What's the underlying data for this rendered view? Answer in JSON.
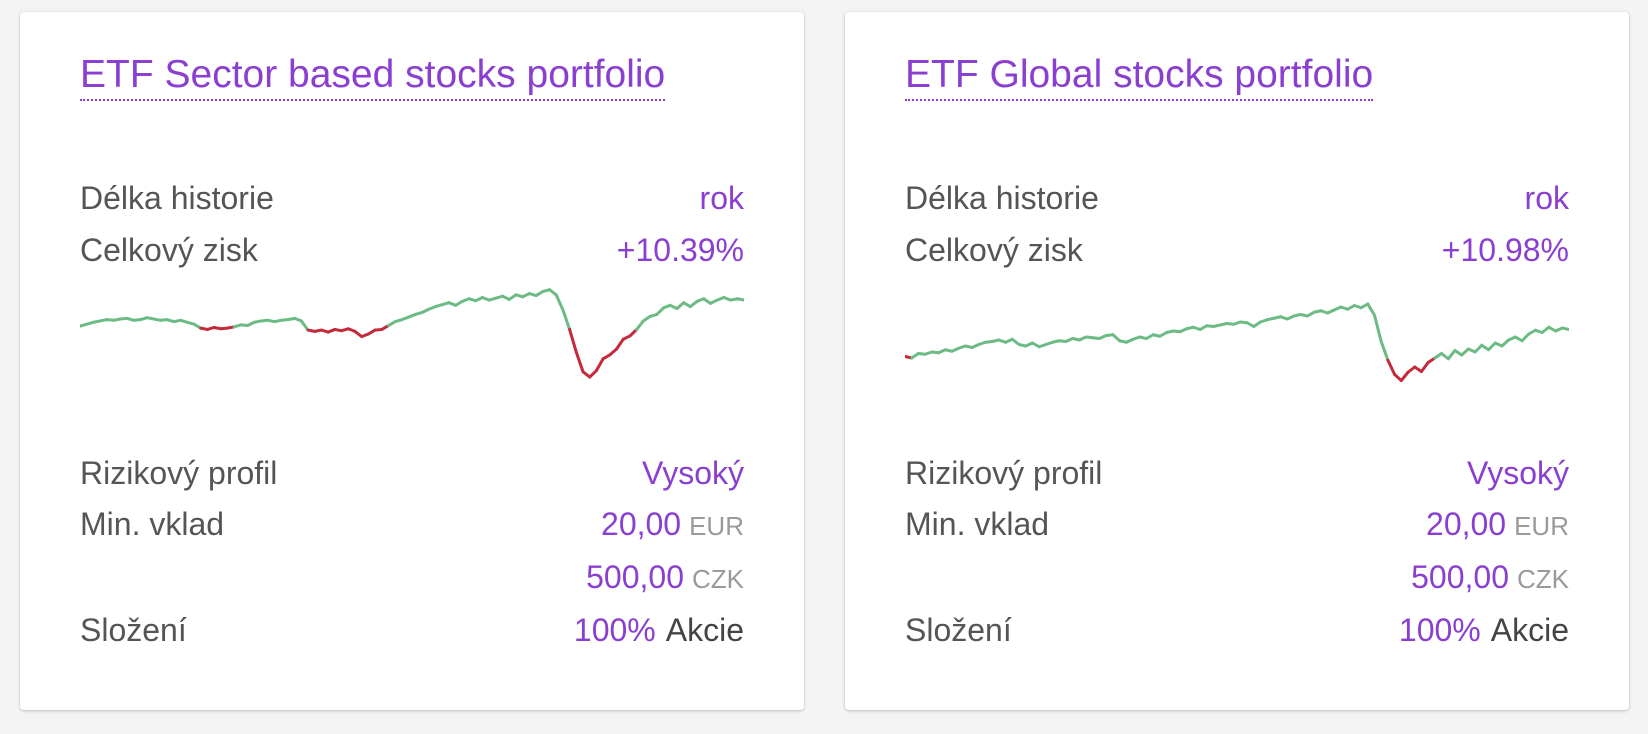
{
  "colors": {
    "accent": "#8a3fd1",
    "positive": "#6dbb84",
    "negative": "#c42a3a"
  },
  "cards": [
    {
      "title": "ETF Sector based stocks portfolio",
      "history_label": "Délka historie",
      "history_value": "rok",
      "gain_label": "Celkový zisk",
      "gain_value": "+10.39%",
      "risk_label": "Rizikový profil",
      "risk_value": "Vysoký",
      "min_label": "Min. vklad",
      "min_eur_amount": "20,00",
      "min_eur_currency": "EUR",
      "min_czk_amount": "500,00",
      "min_czk_currency": "CZK",
      "composition_label": "Složení",
      "composition_percent": "100%",
      "composition_type": "Akcie",
      "chart_data": {
        "type": "line",
        "baseline": 0,
        "ylim": [
          -15,
          8
        ],
        "values": [
          0,
          0.3,
          0.6,
          0.8,
          1.0,
          0.9,
          1.1,
          1.2,
          0.9,
          1.0,
          1.3,
          1.1,
          0.9,
          1.0,
          0.7,
          0.9,
          0.6,
          0.3,
          -0.3,
          -0.5,
          -0.2,
          -0.4,
          -0.3,
          -0.1,
          0.2,
          0.1,
          0.6,
          0.8,
          0.9,
          0.7,
          0.9,
          1.0,
          1.2,
          0.8,
          -0.6,
          -0.8,
          -0.6,
          -0.9,
          -0.5,
          -0.7,
          -0.4,
          -0.8,
          -1.6,
          -1.2,
          -0.6,
          -0.5,
          0.1,
          0.7,
          1.0,
          1.4,
          1.8,
          2.1,
          2.6,
          3.0,
          3.3,
          3.6,
          3.2,
          3.8,
          4.2,
          3.9,
          4.4,
          4.0,
          4.3,
          4.6,
          4.1,
          4.8,
          4.5,
          5.0,
          4.7,
          5.3,
          5.6,
          4.8,
          2.5,
          -0.5,
          -4.0,
          -7.0,
          -7.8,
          -6.8,
          -5.0,
          -4.4,
          -3.5,
          -2.0,
          -1.5,
          -0.5,
          0.8,
          1.5,
          1.8,
          2.8,
          3.2,
          2.7,
          3.6,
          3.0,
          3.8,
          4.2,
          3.5,
          4.0,
          4.4,
          4.0,
          4.2,
          4.0
        ]
      }
    },
    {
      "title": "ETF Global stocks portfolio",
      "history_label": "Délka historie",
      "history_value": "rok",
      "gain_label": "Celkový zisk",
      "gain_value": "+10.98%",
      "risk_label": "Rizikový profil",
      "risk_value": "Vysoký",
      "min_label": "Min. vklad",
      "min_eur_amount": "20,00",
      "min_eur_currency": "EUR",
      "min_czk_amount": "500,00",
      "min_czk_currency": "CZK",
      "composition_label": "Složení",
      "composition_percent": "100%",
      "composition_type": "Akcie",
      "chart_data": {
        "type": "line",
        "baseline": 0,
        "ylim": [
          -9,
          11
        ],
        "values": [
          0,
          -0.2,
          0.4,
          0.3,
          0.6,
          0.5,
          0.9,
          0.7,
          1.1,
          1.4,
          1.2,
          1.6,
          1.9,
          2.0,
          2.2,
          1.9,
          2.3,
          1.6,
          1.4,
          1.8,
          1.3,
          1.6,
          1.9,
          2.1,
          2.0,
          2.4,
          2.2,
          2.6,
          2.5,
          2.4,
          2.8,
          2.9,
          2.1,
          1.9,
          2.3,
          2.6,
          2.4,
          2.9,
          2.7,
          3.2,
          3.4,
          3.3,
          3.7,
          3.9,
          3.6,
          4.1,
          4.0,
          4.2,
          4.4,
          4.3,
          4.6,
          4.5,
          4.0,
          4.6,
          4.9,
          5.1,
          5.3,
          5.0,
          5.4,
          5.6,
          5.4,
          5.9,
          6.1,
          5.8,
          6.2,
          6.6,
          6.3,
          6.8,
          6.5,
          7.0,
          5.5,
          2.0,
          -0.5,
          -2.4,
          -3.2,
          -2.1,
          -1.4,
          -2.0,
          -0.8,
          -0.2,
          0.4,
          -0.3,
          0.8,
          0.2,
          1.0,
          0.6,
          1.5,
          0.9,
          1.8,
          1.4,
          2.2,
          2.6,
          2.1,
          3.0,
          3.5,
          3.2,
          3.9,
          3.4,
          3.8,
          3.6
        ]
      }
    }
  ]
}
